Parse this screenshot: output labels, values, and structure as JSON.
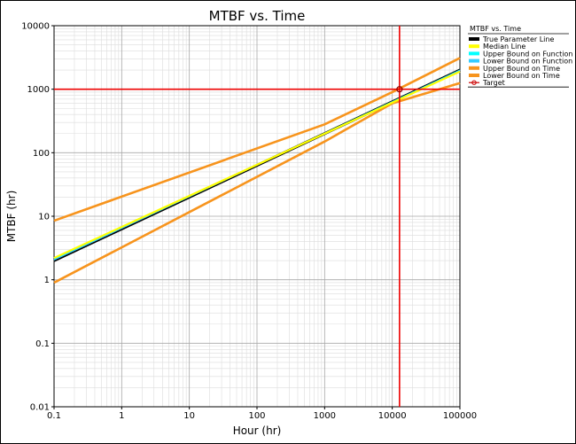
{
  "chart_data": {
    "type": "line",
    "title": "MTBF vs. Time",
    "xlabel": "Hour (hr)",
    "ylabel": "MTBF (hr)",
    "x_scale": "log",
    "y_scale": "log",
    "xlim": [
      0.1,
      100000
    ],
    "ylim": [
      0.01,
      10000
    ],
    "grid": true,
    "x_ticks": [
      "0.1",
      "1",
      "10",
      "100",
      "1000",
      "10000",
      "100000"
    ],
    "y_ticks": [
      "0.01",
      "0.1",
      "1",
      "10",
      "100",
      "1000",
      "10000"
    ],
    "legend": {
      "title": "MTBF vs. Time",
      "placement": "right",
      "entries": [
        {
          "label": "True Parameter Line",
          "color": "#000000"
        },
        {
          "label": "Median Line",
          "color": "#ffff00"
        },
        {
          "label": "Upper Bound on Function",
          "color": "#00ffff"
        },
        {
          "label": "Lower Bound on Function",
          "color": "#33ccff"
        },
        {
          "label": "Upper Bound on Time",
          "color": "#f7941d"
        },
        {
          "label": "Lower Bound on Time",
          "color": "#f7941d"
        },
        {
          "label": "Target",
          "color": "#cc0000"
        }
      ]
    },
    "series": [
      {
        "name": "True Parameter Line",
        "color": "#000000",
        "x": [
          0.1,
          100000
        ],
        "y": [
          2.0,
          2000
        ]
      },
      {
        "name": "Median Line",
        "color": "#ffff00",
        "x": [
          0.1,
          100000
        ],
        "y": [
          2.2,
          1900
        ]
      },
      {
        "name": "Upper Bound on Function",
        "color": "#00ffff",
        "x": [
          0.1,
          100000
        ],
        "y": [
          2.1,
          2000
        ]
      },
      {
        "name": "Lower Bound on Function",
        "color": "#33ccff",
        "x": [
          0.1,
          100000
        ],
        "y": [
          2.05,
          1980
        ]
      },
      {
        "name": "Upper Bound on Time",
        "color": "#f7941d",
        "x": [
          0.1,
          1000,
          10000,
          100000
        ],
        "y": [
          8.5,
          280,
          900,
          3100
        ]
      },
      {
        "name": "Lower Bound on Time",
        "color": "#f7941d",
        "x": [
          0.1,
          1000,
          10000,
          100000
        ],
        "y": [
          0.9,
          150,
          600,
          1250
        ]
      }
    ],
    "target": {
      "x": 12800,
      "y": 1000,
      "color": "#ee0000"
    }
  }
}
